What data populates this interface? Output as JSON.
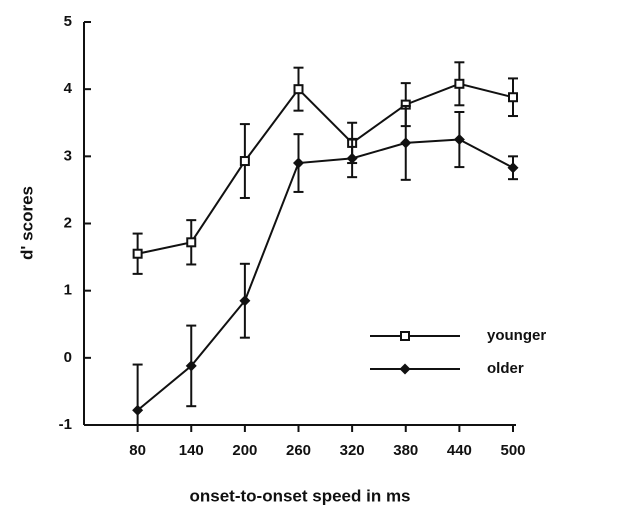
{
  "chart_data": {
    "type": "line",
    "x_label": "onset-to-onset speed in ms",
    "y_label": "d' scores",
    "x": [
      80,
      140,
      200,
      260,
      320,
      380,
      440,
      500
    ],
    "series": [
      {
        "name": "younger",
        "color": "#111111",
        "marker": "square",
        "values": [
          1.55,
          1.72,
          2.93,
          4.0,
          3.2,
          3.77,
          4.08,
          3.88
        ],
        "errors": [
          0.3,
          0.33,
          0.55,
          0.32,
          0.3,
          0.32,
          0.32,
          0.28
        ]
      },
      {
        "name": "older",
        "color": "#111111",
        "marker": "diamond",
        "values": [
          -0.78,
          -0.12,
          0.85,
          2.9,
          2.97,
          3.2,
          3.25,
          2.83
        ],
        "errors": [
          0.68,
          0.6,
          0.55,
          0.43,
          0.28,
          0.55,
          0.41,
          0.17
        ]
      }
    ],
    "xlim": [
      20,
      500
    ],
    "xticks": [
      80,
      140,
      200,
      260,
      320,
      380,
      440,
      500
    ],
    "ylim": [
      -1,
      5
    ],
    "yticks": [
      -1,
      0,
      1,
      2,
      3,
      4,
      5
    ],
    "legend": "lower right"
  }
}
